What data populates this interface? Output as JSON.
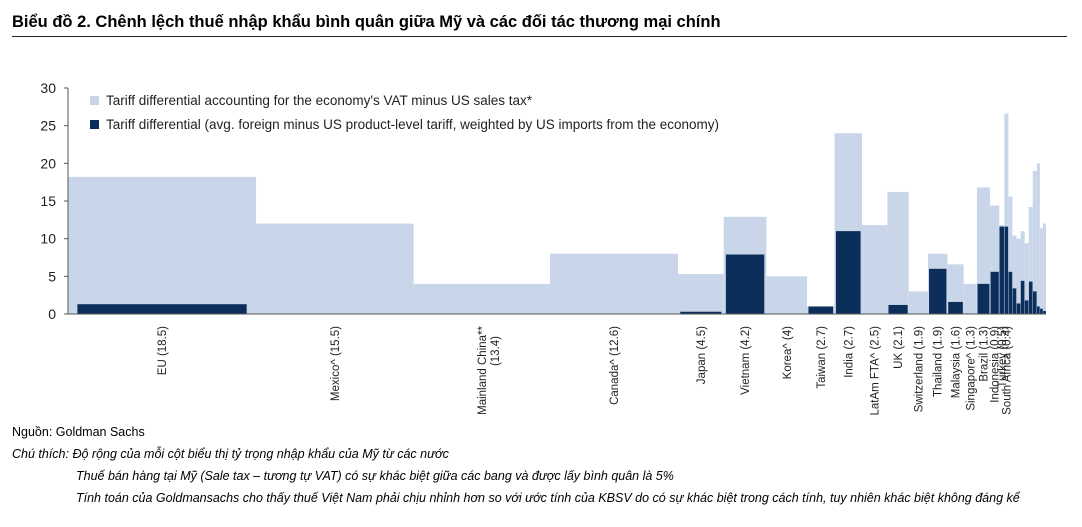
{
  "title": "Biểu đồ 2. Chênh lệch thuế nhập khẩu bình quân giữa Mỹ và các đối tác thương mại chính",
  "source": "Nguồn: Goldman Sachs",
  "notes": {
    "label": "Chú thích:",
    "lines": [
      "Độ rộng của mỗi cột biểu thị tỷ trọng nhập khẩu của Mỹ từ các nước",
      "Thuế bán hàng tại Mỹ (Sale tax – tương tự VAT) có sự khác biệt giữa các bang và được lấy bình quân là 5%",
      "Tính toán của Goldmansachs cho thấy thuế Việt Nam phải chịu nhỉnh hơn so với ước tính của KBSV do có sự khác biệt trong cách tính, tuy nhiên khác biệt không đáng kể"
    ]
  },
  "colors": {
    "vat": "#c9d6ea",
    "tariff": "#0b2e5a"
  },
  "chart_data": {
    "type": "bar",
    "variable_width": true,
    "ylim": [
      0,
      30
    ],
    "yticks": [
      0,
      5,
      10,
      15,
      20,
      25,
      30
    ],
    "legend_position": "top-left",
    "series": [
      {
        "name": "Tariff differential accounting for the economy's VAT minus US sales tax*",
        "key": "total"
      },
      {
        "name": "Tariff differential (avg. foreign minus US product-level tariff, weighted by US imports from the economy)",
        "key": "tariff"
      }
    ],
    "bars": [
      {
        "label": "EU (18.5)",
        "share": 18.5,
        "total": 18.2,
        "tariff": 1.3
      },
      {
        "label": "Mexico^ (15.5)",
        "share": 15.5,
        "total": 12.0,
        "tariff": 0
      },
      {
        "label": "Mainland China**",
        "label2": "(13.4)",
        "share": 13.4,
        "total": 4.0,
        "tariff": 0
      },
      {
        "label": "Canada^ (12.6)",
        "share": 12.6,
        "total": 8.0,
        "tariff": 0
      },
      {
        "label": "Japan (4.5)",
        "share": 4.5,
        "total": 5.3,
        "tariff": 0.3
      },
      {
        "label": "Vietnam (4.2)",
        "share": 4.2,
        "total": 12.9,
        "tariff": 7.9
      },
      {
        "label": "Korea^ (4)",
        "share": 4.0,
        "total": 5.0,
        "tariff": 0
      },
      {
        "label": "Taiwan (2.7)",
        "share": 2.7,
        "total": 1.0,
        "tariff": 1.0
      },
      {
        "label": "India (2.7)",
        "share": 2.7,
        "total": 24.0,
        "tariff": 11.0
      },
      {
        "label": "LatAm FTA^ (2.5)",
        "share": 2.5,
        "total": 11.8,
        "tariff": 0
      },
      {
        "label": "UK (2.1)",
        "share": 2.1,
        "total": 16.2,
        "tariff": 1.2
      },
      {
        "label": "Switzerland (1.9)",
        "share": 1.9,
        "total": 3.0,
        "tariff": 0
      },
      {
        "label": "Thailand (1.9)",
        "share": 1.9,
        "total": 8.0,
        "tariff": 6.0
      },
      {
        "label": "Malaysia (1.6)",
        "share": 1.6,
        "total": 6.6,
        "tariff": 1.6
      },
      {
        "label": "Singapore^ (1.3)",
        "share": 1.3,
        "total": 4.0,
        "tariff": 0
      },
      {
        "label": "Brazil (1.3)",
        "share": 1.3,
        "total": 16.8,
        "tariff": 4.0
      },
      {
        "label": "Indonesia (0.9)",
        "share": 0.9,
        "total": 14.4,
        "tariff": 5.6
      },
      {
        "label": "Turkey (0.5)",
        "share": 0.5,
        "total": 11.8,
        "tariff": 11.6
      },
      {
        "label": "South Africa (0.4)",
        "share": 0.4,
        "total": 26.6,
        "tariff": 11.6
      },
      {
        "label": "",
        "share": 0.4,
        "total": 15.6,
        "tariff": 5.6
      },
      {
        "label": "",
        "share": 0.4,
        "total": 10.4,
        "tariff": 3.4
      },
      {
        "label": "",
        "share": 0.4,
        "total": 10.0,
        "tariff": 1.4
      },
      {
        "label": "",
        "share": 0.4,
        "total": 11.0,
        "tariff": 4.4
      },
      {
        "label": "",
        "share": 0.4,
        "total": 9.4,
        "tariff": 1.8
      },
      {
        "label": "",
        "share": 0.4,
        "total": 14.2,
        "tariff": 4.3
      },
      {
        "label": "",
        "share": 0.4,
        "total": 19.0,
        "tariff": 3.0
      },
      {
        "label": "",
        "share": 0.3,
        "total": 20.0,
        "tariff": 1.0
      },
      {
        "label": "",
        "share": 0.3,
        "total": 11.4,
        "tariff": 0.7
      },
      {
        "label": "",
        "share": 0.3,
        "total": 12.0,
        "tariff": 0.4
      }
    ]
  }
}
